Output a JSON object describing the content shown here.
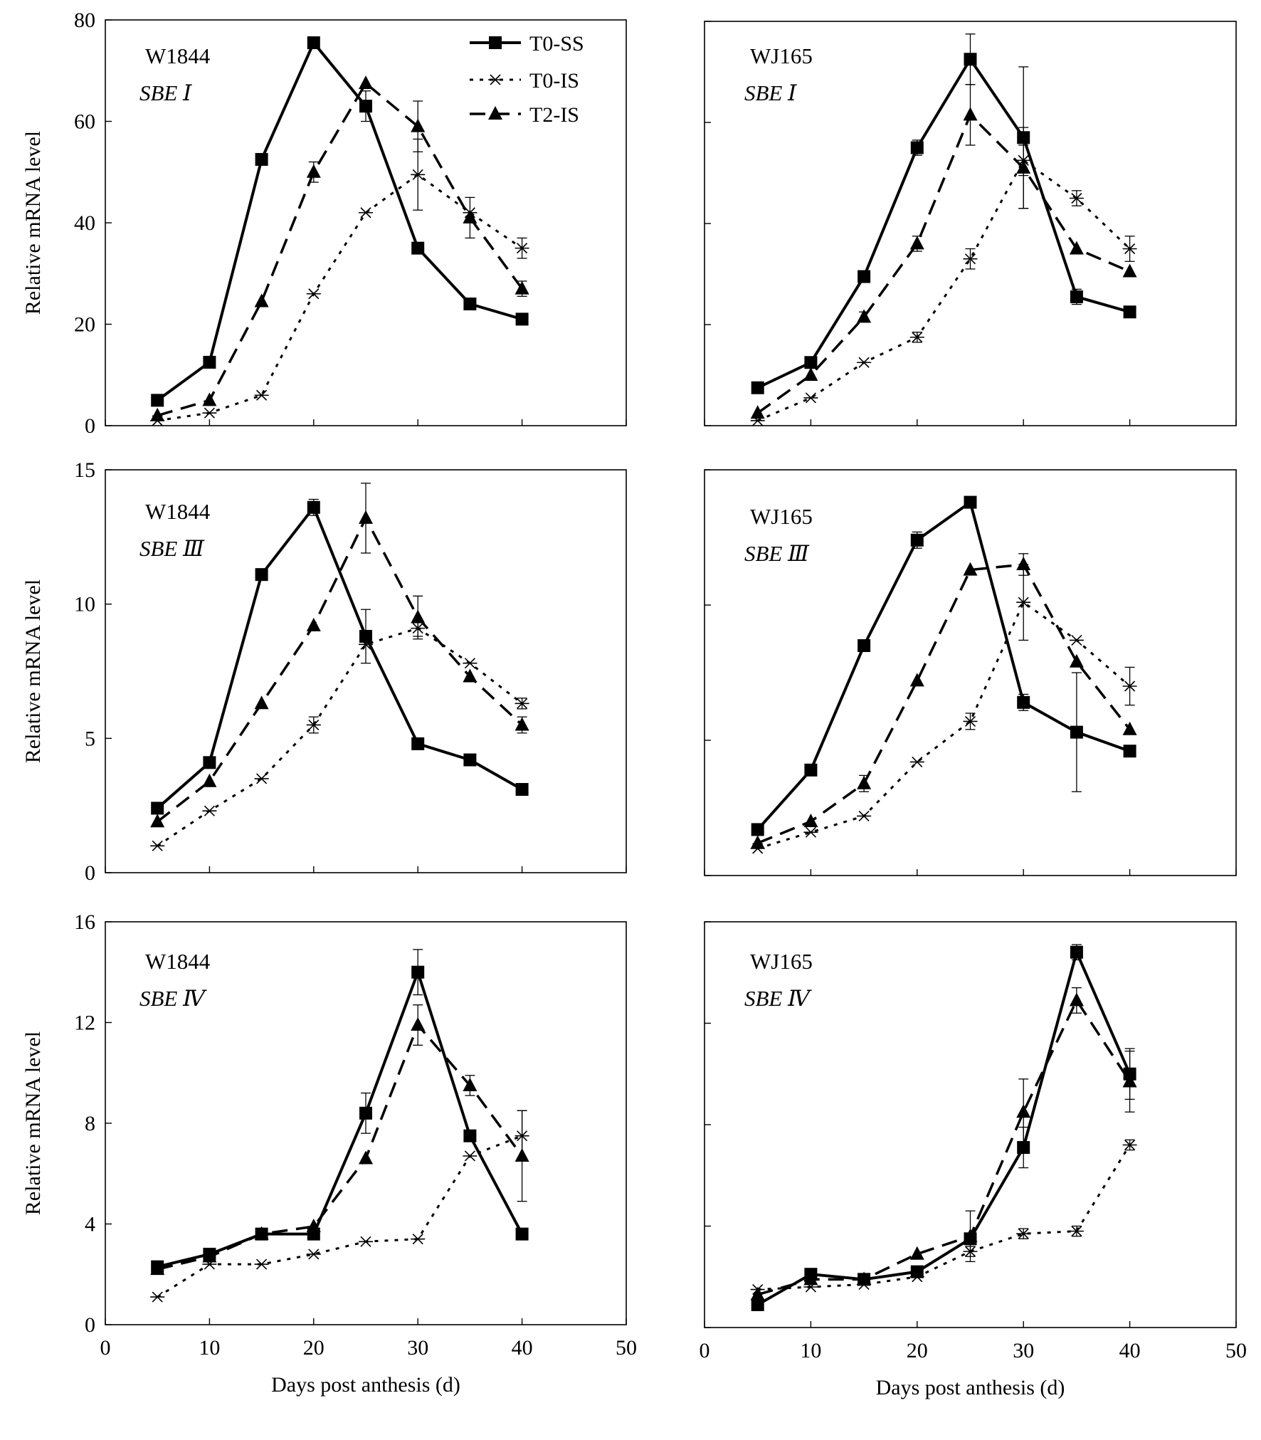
{
  "figure": {
    "legend": [
      {
        "key": "T0-SS",
        "label": "T0-SS"
      },
      {
        "key": "T0-IS",
        "label": "T0-IS"
      },
      {
        "key": "T2-IS",
        "label": "T2-IS"
      }
    ],
    "xlabel": "Days post anthesis (d)",
    "ylabel": "Relative mRNA level"
  },
  "chart_data": [
    {
      "id": "w1844-sbe1",
      "type": "line",
      "annotation": [
        "W1844",
        "SBE Ⅰ"
      ],
      "x": [
        5,
        10,
        15,
        20,
        25,
        30,
        35,
        40
      ],
      "xlim": [
        0,
        50
      ],
      "xticks": [
        0,
        10,
        20,
        30,
        40,
        50
      ],
      "show_xticklabels": false,
      "ylim": [
        0,
        80
      ],
      "yticks": [
        0,
        20,
        40,
        60,
        80
      ],
      "show_yticklabels": true,
      "show_ylabel": true,
      "show_xlabel": false,
      "legend": true,
      "series": [
        {
          "name": "T0-SS",
          "values": [
            5,
            12.5,
            52.5,
            75.5,
            63,
            35,
            24,
            21
          ],
          "errors": [
            0,
            0,
            0,
            0,
            3,
            0,
            0,
            0
          ]
        },
        {
          "name": "T0-IS",
          "values": [
            1,
            2.5,
            6,
            26,
            42,
            49.5,
            42,
            35
          ],
          "errors": [
            0,
            0,
            0,
            0,
            0,
            7,
            0,
            2
          ]
        },
        {
          "name": "T2-IS",
          "values": [
            2,
            5,
            24.5,
            50,
            67.5,
            59,
            41,
            27
          ],
          "errors": [
            0,
            0,
            0,
            2,
            0,
            5,
            4,
            1.5
          ]
        }
      ]
    },
    {
      "id": "wj165-sbe1",
      "type": "line",
      "annotation": [
        "WJ165",
        "SBE Ⅰ"
      ],
      "x": [
        5,
        10,
        15,
        20,
        25,
        30,
        35,
        40
      ],
      "xlim": [
        0,
        50
      ],
      "xticks": [
        0,
        10,
        20,
        30,
        40,
        50
      ],
      "show_xticklabels": false,
      "ylim": [
        0,
        80
      ],
      "yticks": [
        0,
        20,
        40,
        60,
        80
      ],
      "show_yticklabels": false,
      "show_ylabel": false,
      "show_xlabel": false,
      "legend": false,
      "series": [
        {
          "name": "T0-SS",
          "values": [
            7.5,
            12.5,
            29.5,
            55,
            72.5,
            57,
            25.5,
            22.5
          ],
          "errors": [
            0,
            0,
            0,
            1.5,
            5,
            14,
            1.5,
            0
          ]
        },
        {
          "name": "T0-IS",
          "values": [
            1,
            5.5,
            12.5,
            17.5,
            33,
            52.5,
            45,
            35
          ],
          "errors": [
            0,
            0,
            0,
            1,
            2,
            3,
            1.5,
            2.5
          ]
        },
        {
          "name": "T2-IS",
          "values": [
            2.5,
            10,
            21.5,
            36,
            61.5,
            51,
            35,
            30.5
          ],
          "errors": [
            0,
            0,
            1,
            1.5,
            6,
            8,
            0,
            0
          ]
        }
      ]
    },
    {
      "id": "w1844-sbe3",
      "type": "line",
      "annotation": [
        "W1844",
        "SBE Ⅲ"
      ],
      "x": [
        5,
        10,
        15,
        20,
        25,
        30,
        35,
        40
      ],
      "xlim": [
        0,
        50
      ],
      "xticks": [
        0,
        10,
        20,
        30,
        40,
        50
      ],
      "show_xticklabels": false,
      "ylim": [
        0,
        15
      ],
      "yticks": [
        0,
        5,
        10,
        15
      ],
      "show_yticklabels": true,
      "show_ylabel": true,
      "show_xlabel": false,
      "legend": false,
      "series": [
        {
          "name": "T0-SS",
          "values": [
            2.4,
            4.1,
            11.1,
            13.6,
            8.8,
            4.8,
            4.2,
            3.1
          ],
          "errors": [
            0,
            0,
            0,
            0.3,
            1,
            0,
            0,
            0
          ]
        },
        {
          "name": "T0-IS",
          "values": [
            1,
            2.3,
            3.5,
            5.5,
            8.5,
            9.1,
            7.8,
            6.3
          ],
          "errors": [
            0,
            0,
            0,
            0.3,
            0,
            0.3,
            0,
            0.2
          ]
        },
        {
          "name": "T2-IS",
          "values": [
            1.9,
            3.4,
            6.3,
            9.2,
            13.2,
            9.5,
            7.3,
            5.5
          ],
          "errors": [
            0,
            0,
            0,
            0,
            1.3,
            0.8,
            0,
            0.3
          ]
        }
      ]
    },
    {
      "id": "wj165-sbe3",
      "type": "line",
      "annotation": [
        "WJ165",
        "SBE Ⅲ"
      ],
      "x": [
        5,
        10,
        15,
        20,
        25,
        30,
        35,
        40
      ],
      "xlim": [
        0,
        50
      ],
      "xticks": [
        0,
        10,
        20,
        30,
        40,
        50
      ],
      "show_xticklabels": false,
      "ylim": [
        0,
        15
      ],
      "yticks": [
        0,
        5,
        10,
        15
      ],
      "show_yticklabels": false,
      "show_ylabel": false,
      "show_xlabel": false,
      "legend": false,
      "series": [
        {
          "name": "T0-SS",
          "values": [
            1.7,
            3.9,
            8.5,
            12.4,
            13.8,
            6.4,
            5.3,
            4.6
          ],
          "errors": [
            0,
            0,
            0,
            0.3,
            0,
            0.3,
            2.2,
            0
          ]
        },
        {
          "name": "T0-IS",
          "values": [
            1,
            1.6,
            2.2,
            4.2,
            5.7,
            10.1,
            8.7,
            7
          ],
          "errors": [
            0,
            0,
            0,
            0,
            0.3,
            1.4,
            0,
            0.7
          ]
        },
        {
          "name": "T2-IS",
          "values": [
            1.2,
            2,
            3.4,
            7.2,
            11.3,
            11.5,
            7.9,
            5.4
          ],
          "errors": [
            0,
            0,
            0.3,
            0,
            0,
            0.4,
            0,
            0
          ]
        }
      ]
    },
    {
      "id": "w1844-sbe4",
      "type": "line",
      "annotation": [
        "W1844",
        "SBE Ⅳ"
      ],
      "x": [
        5,
        10,
        15,
        20,
        25,
        30,
        35,
        40
      ],
      "xlim": [
        0,
        50
      ],
      "xticks": [
        0,
        10,
        20,
        30,
        40,
        50
      ],
      "show_xticklabels": true,
      "ylim": [
        0,
        16
      ],
      "yticks": [
        0,
        4,
        8,
        12,
        16
      ],
      "show_yticklabels": true,
      "show_ylabel": true,
      "show_xlabel": true,
      "legend": false,
      "series": [
        {
          "name": "T0-SS",
          "values": [
            2.3,
            2.8,
            3.6,
            3.6,
            8.4,
            14,
            7.5,
            3.6
          ],
          "errors": [
            0,
            0,
            0,
            0,
            0.8,
            0.9,
            0,
            0
          ]
        },
        {
          "name": "T0-IS",
          "values": [
            1.1,
            2.4,
            2.4,
            2.8,
            3.3,
            3.4,
            6.7,
            7.5
          ],
          "errors": [
            0,
            0,
            0,
            0,
            0,
            0,
            0,
            1
          ]
        },
        {
          "name": "T2-IS",
          "values": [
            2.2,
            2.7,
            3.6,
            3.9,
            6.6,
            11.9,
            9.5,
            6.7
          ],
          "errors": [
            0,
            0,
            0,
            0,
            0,
            0.8,
            0.4,
            1.8
          ]
        }
      ]
    },
    {
      "id": "wj165-sbe4",
      "type": "line",
      "annotation": [
        "WJ165",
        "SBE Ⅳ"
      ],
      "x": [
        5,
        10,
        15,
        20,
        25,
        30,
        35,
        40
      ],
      "xlim": [
        0,
        50
      ],
      "xticks": [
        0,
        10,
        20,
        30,
        40,
        50
      ],
      "show_xticklabels": true,
      "ylim": [
        0,
        16
      ],
      "yticks": [
        0,
        4,
        8,
        12,
        16
      ],
      "show_yticklabels": false,
      "show_ylabel": false,
      "show_xlabel": true,
      "legend": false,
      "series": [
        {
          "name": "T0-SS",
          "values": [
            0.9,
            2.1,
            1.9,
            2.2,
            3.5,
            7.1,
            14.8,
            10
          ],
          "errors": [
            0,
            0,
            0,
            0,
            0,
            0.8,
            0.3,
            1
          ]
        },
        {
          "name": "T0-IS",
          "values": [
            1.5,
            1.6,
            1.7,
            2,
            3,
            3.7,
            3.8,
            7.2
          ],
          "errors": [
            0,
            0,
            0,
            0,
            0.2,
            0.2,
            0.2,
            0.2
          ]
        },
        {
          "name": "T2-IS",
          "values": [
            1.3,
            1.9,
            1.9,
            2.9,
            3.6,
            8.5,
            12.9,
            9.7
          ],
          "errors": [
            0,
            0,
            0,
            0,
            1,
            1.3,
            0.5,
            1.2
          ]
        }
      ]
    }
  ]
}
